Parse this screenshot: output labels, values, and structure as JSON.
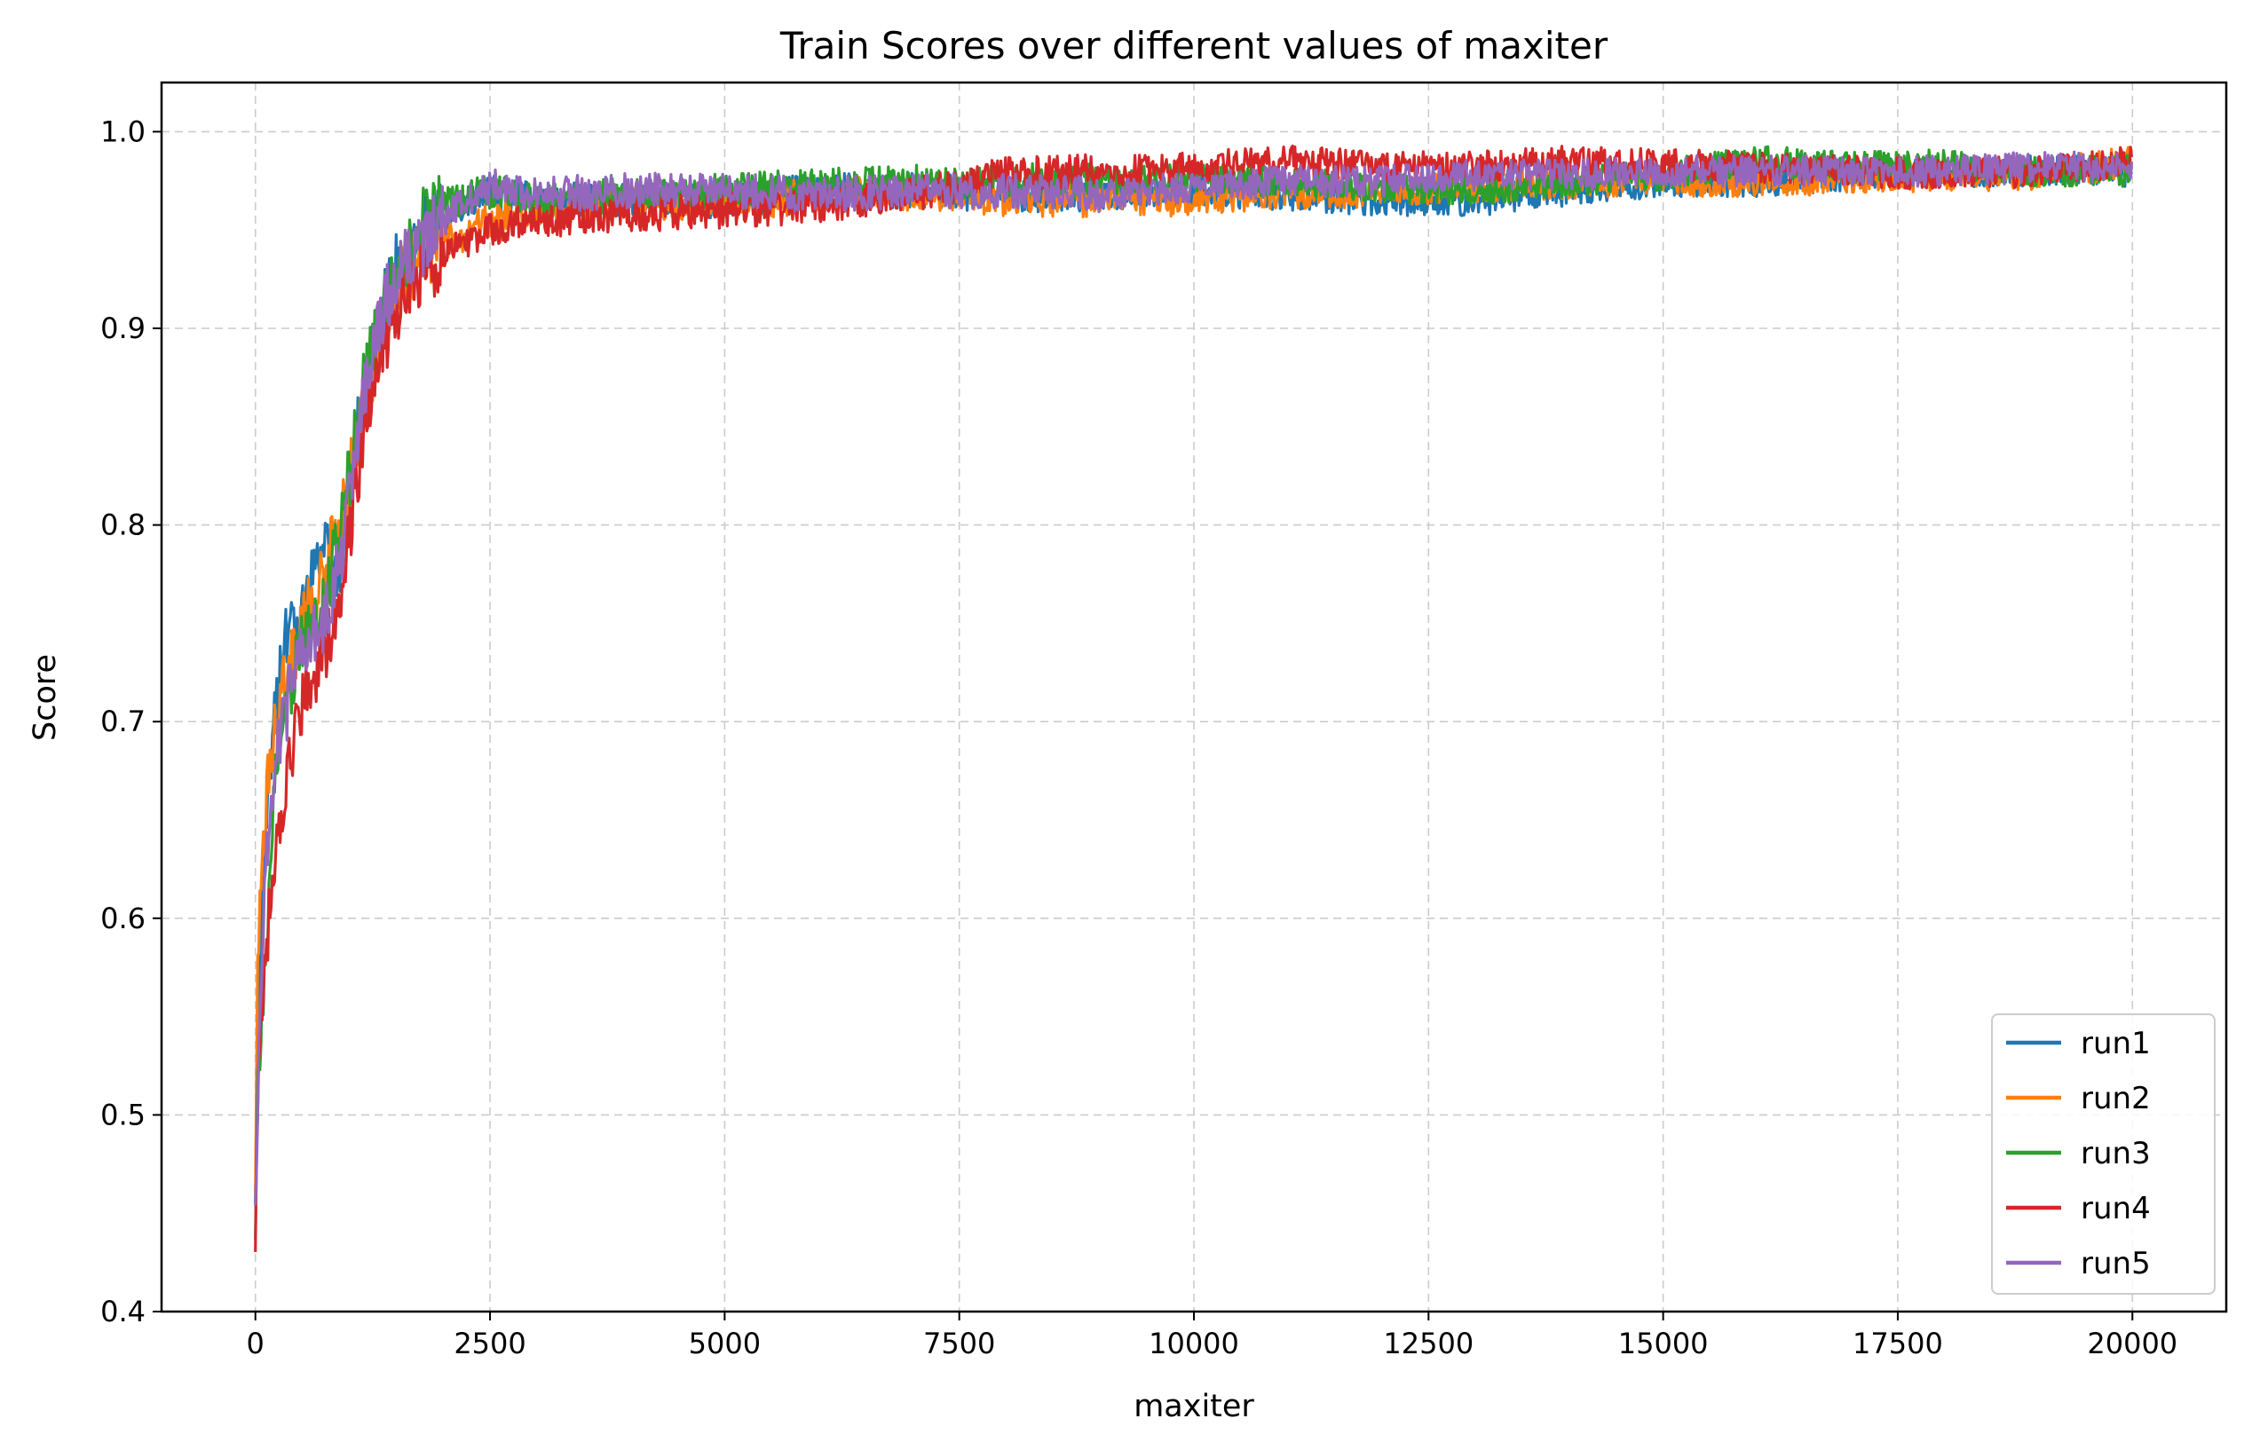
{
  "chart_data": {
    "type": "line",
    "title": "Train Scores over different values of maxiter",
    "xlabel": "maxiter",
    "ylabel": "Score",
    "xlim": [
      -1000,
      21000
    ],
    "ylim": [
      0.4,
      1.025
    ],
    "xticks": [
      0,
      2500,
      5000,
      7500,
      10000,
      12500,
      15000,
      17500,
      20000
    ],
    "xtick_labels": [
      "0",
      "2500",
      "5000",
      "7500",
      "10000",
      "12500",
      "15000",
      "17500",
      "20000"
    ],
    "yticks": [
      0.4,
      0.5,
      0.6,
      0.7,
      0.8,
      0.9,
      1.0
    ],
    "ytick_labels": [
      "0.4",
      "0.5",
      "0.6",
      "0.7",
      "0.8",
      "0.9",
      "1.0"
    ],
    "grid": true,
    "legend_position": "lower-right",
    "x": [
      0,
      25,
      50,
      100,
      150,
      200,
      300,
      400,
      500,
      700,
      900,
      1100,
      1300,
      1500,
      1800,
      2100,
      2500,
      3000,
      4000,
      5000,
      6000,
      7000,
      8000,
      9000,
      10000,
      11000,
      12000,
      13000,
      14000,
      15000,
      16000,
      17000,
      18000,
      19000,
      20000
    ],
    "series": [
      {
        "name": "run1",
        "color": "#1f77b4",
        "values": [
          0.46,
          0.55,
          0.58,
          0.62,
          0.67,
          0.7,
          0.74,
          0.75,
          0.76,
          0.79,
          0.78,
          0.85,
          0.9,
          0.93,
          0.95,
          0.96,
          0.97,
          0.965,
          0.965,
          0.965,
          0.97,
          0.97,
          0.968,
          0.968,
          0.97,
          0.968,
          0.965,
          0.965,
          0.97,
          0.975,
          0.975,
          0.978,
          0.98,
          0.98,
          0.98
        ]
      },
      {
        "name": "run2",
        "color": "#ff7f0e",
        "values": [
          0.45,
          0.58,
          0.6,
          0.64,
          0.68,
          0.7,
          0.72,
          0.73,
          0.75,
          0.77,
          0.8,
          0.85,
          0.89,
          0.92,
          0.94,
          0.945,
          0.955,
          0.96,
          0.965,
          0.963,
          0.968,
          0.968,
          0.966,
          0.965,
          0.965,
          0.968,
          0.97,
          0.972,
          0.974,
          0.975,
          0.975,
          0.976,
          0.978,
          0.978,
          0.985
        ]
      },
      {
        "name": "run3",
        "color": "#2ca02c",
        "values": [
          0.45,
          0.52,
          0.54,
          0.58,
          0.62,
          0.66,
          0.7,
          0.72,
          0.74,
          0.76,
          0.79,
          0.86,
          0.9,
          0.93,
          0.955,
          0.965,
          0.97,
          0.965,
          0.968,
          0.97,
          0.972,
          0.975,
          0.975,
          0.975,
          0.976,
          0.975,
          0.972,
          0.97,
          0.975,
          0.978,
          0.985,
          0.982,
          0.983,
          0.98,
          0.98
        ]
      },
      {
        "name": "run4",
        "color": "#d62728",
        "values": [
          0.43,
          0.5,
          0.55,
          0.58,
          0.6,
          0.62,
          0.66,
          0.69,
          0.71,
          0.73,
          0.76,
          0.83,
          0.88,
          0.91,
          0.93,
          0.94,
          0.95,
          0.955,
          0.958,
          0.96,
          0.962,
          0.968,
          0.978,
          0.98,
          0.982,
          0.985,
          0.982,
          0.982,
          0.985,
          0.983,
          0.982,
          0.98,
          0.978,
          0.98,
          0.985
        ]
      },
      {
        "name": "run5",
        "color": "#9467bd",
        "values": [
          0.44,
          0.5,
          0.56,
          0.62,
          0.65,
          0.68,
          0.7,
          0.72,
          0.74,
          0.75,
          0.78,
          0.85,
          0.9,
          0.93,
          0.945,
          0.96,
          0.972,
          0.968,
          0.97,
          0.97,
          0.968,
          0.97,
          0.97,
          0.968,
          0.972,
          0.975,
          0.975,
          0.978,
          0.978,
          0.98,
          0.98,
          0.98,
          0.98,
          0.982,
          0.982
        ]
      }
    ]
  }
}
